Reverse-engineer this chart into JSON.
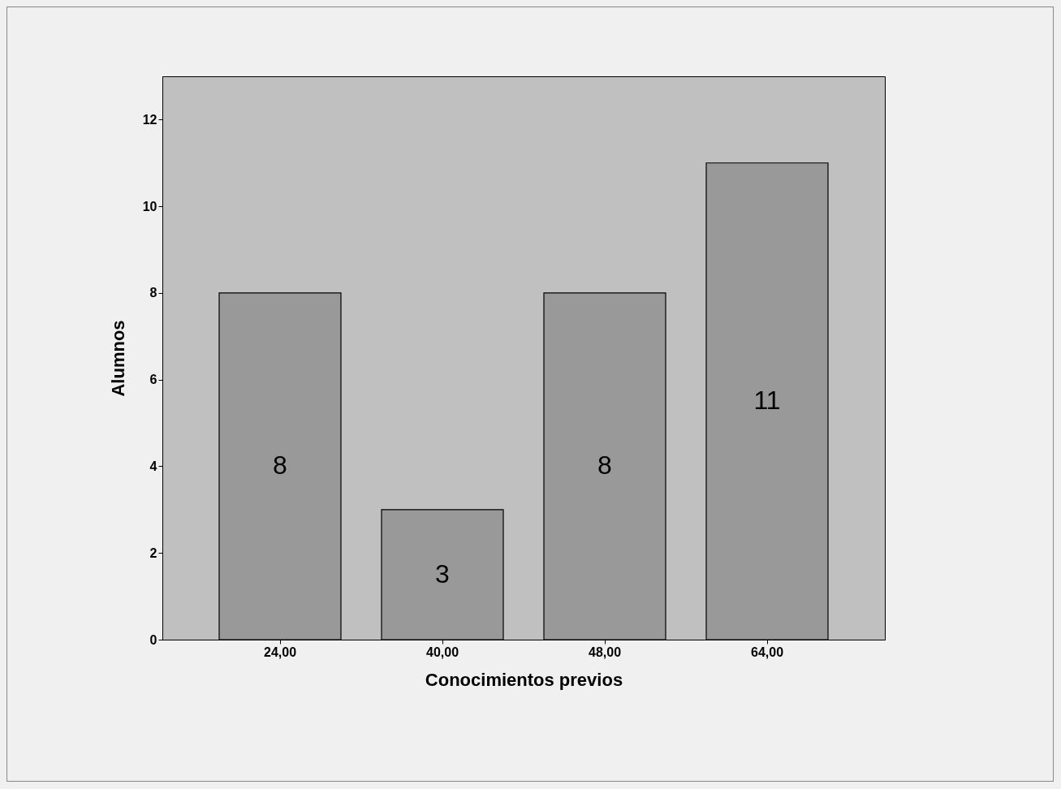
{
  "chart_data": {
    "type": "bar",
    "xlabel": "Conocimientos previos",
    "ylabel": "Alumnos",
    "categories": [
      "24,00",
      "40,00",
      "48,00",
      "64,00"
    ],
    "values": [
      8,
      3,
      8,
      11
    ],
    "color": "#999999",
    "ylim": [
      0,
      13
    ],
    "yticks": [
      0,
      2,
      4,
      6,
      8,
      10,
      12
    ],
    "grid": false,
    "data_labels": true
  }
}
